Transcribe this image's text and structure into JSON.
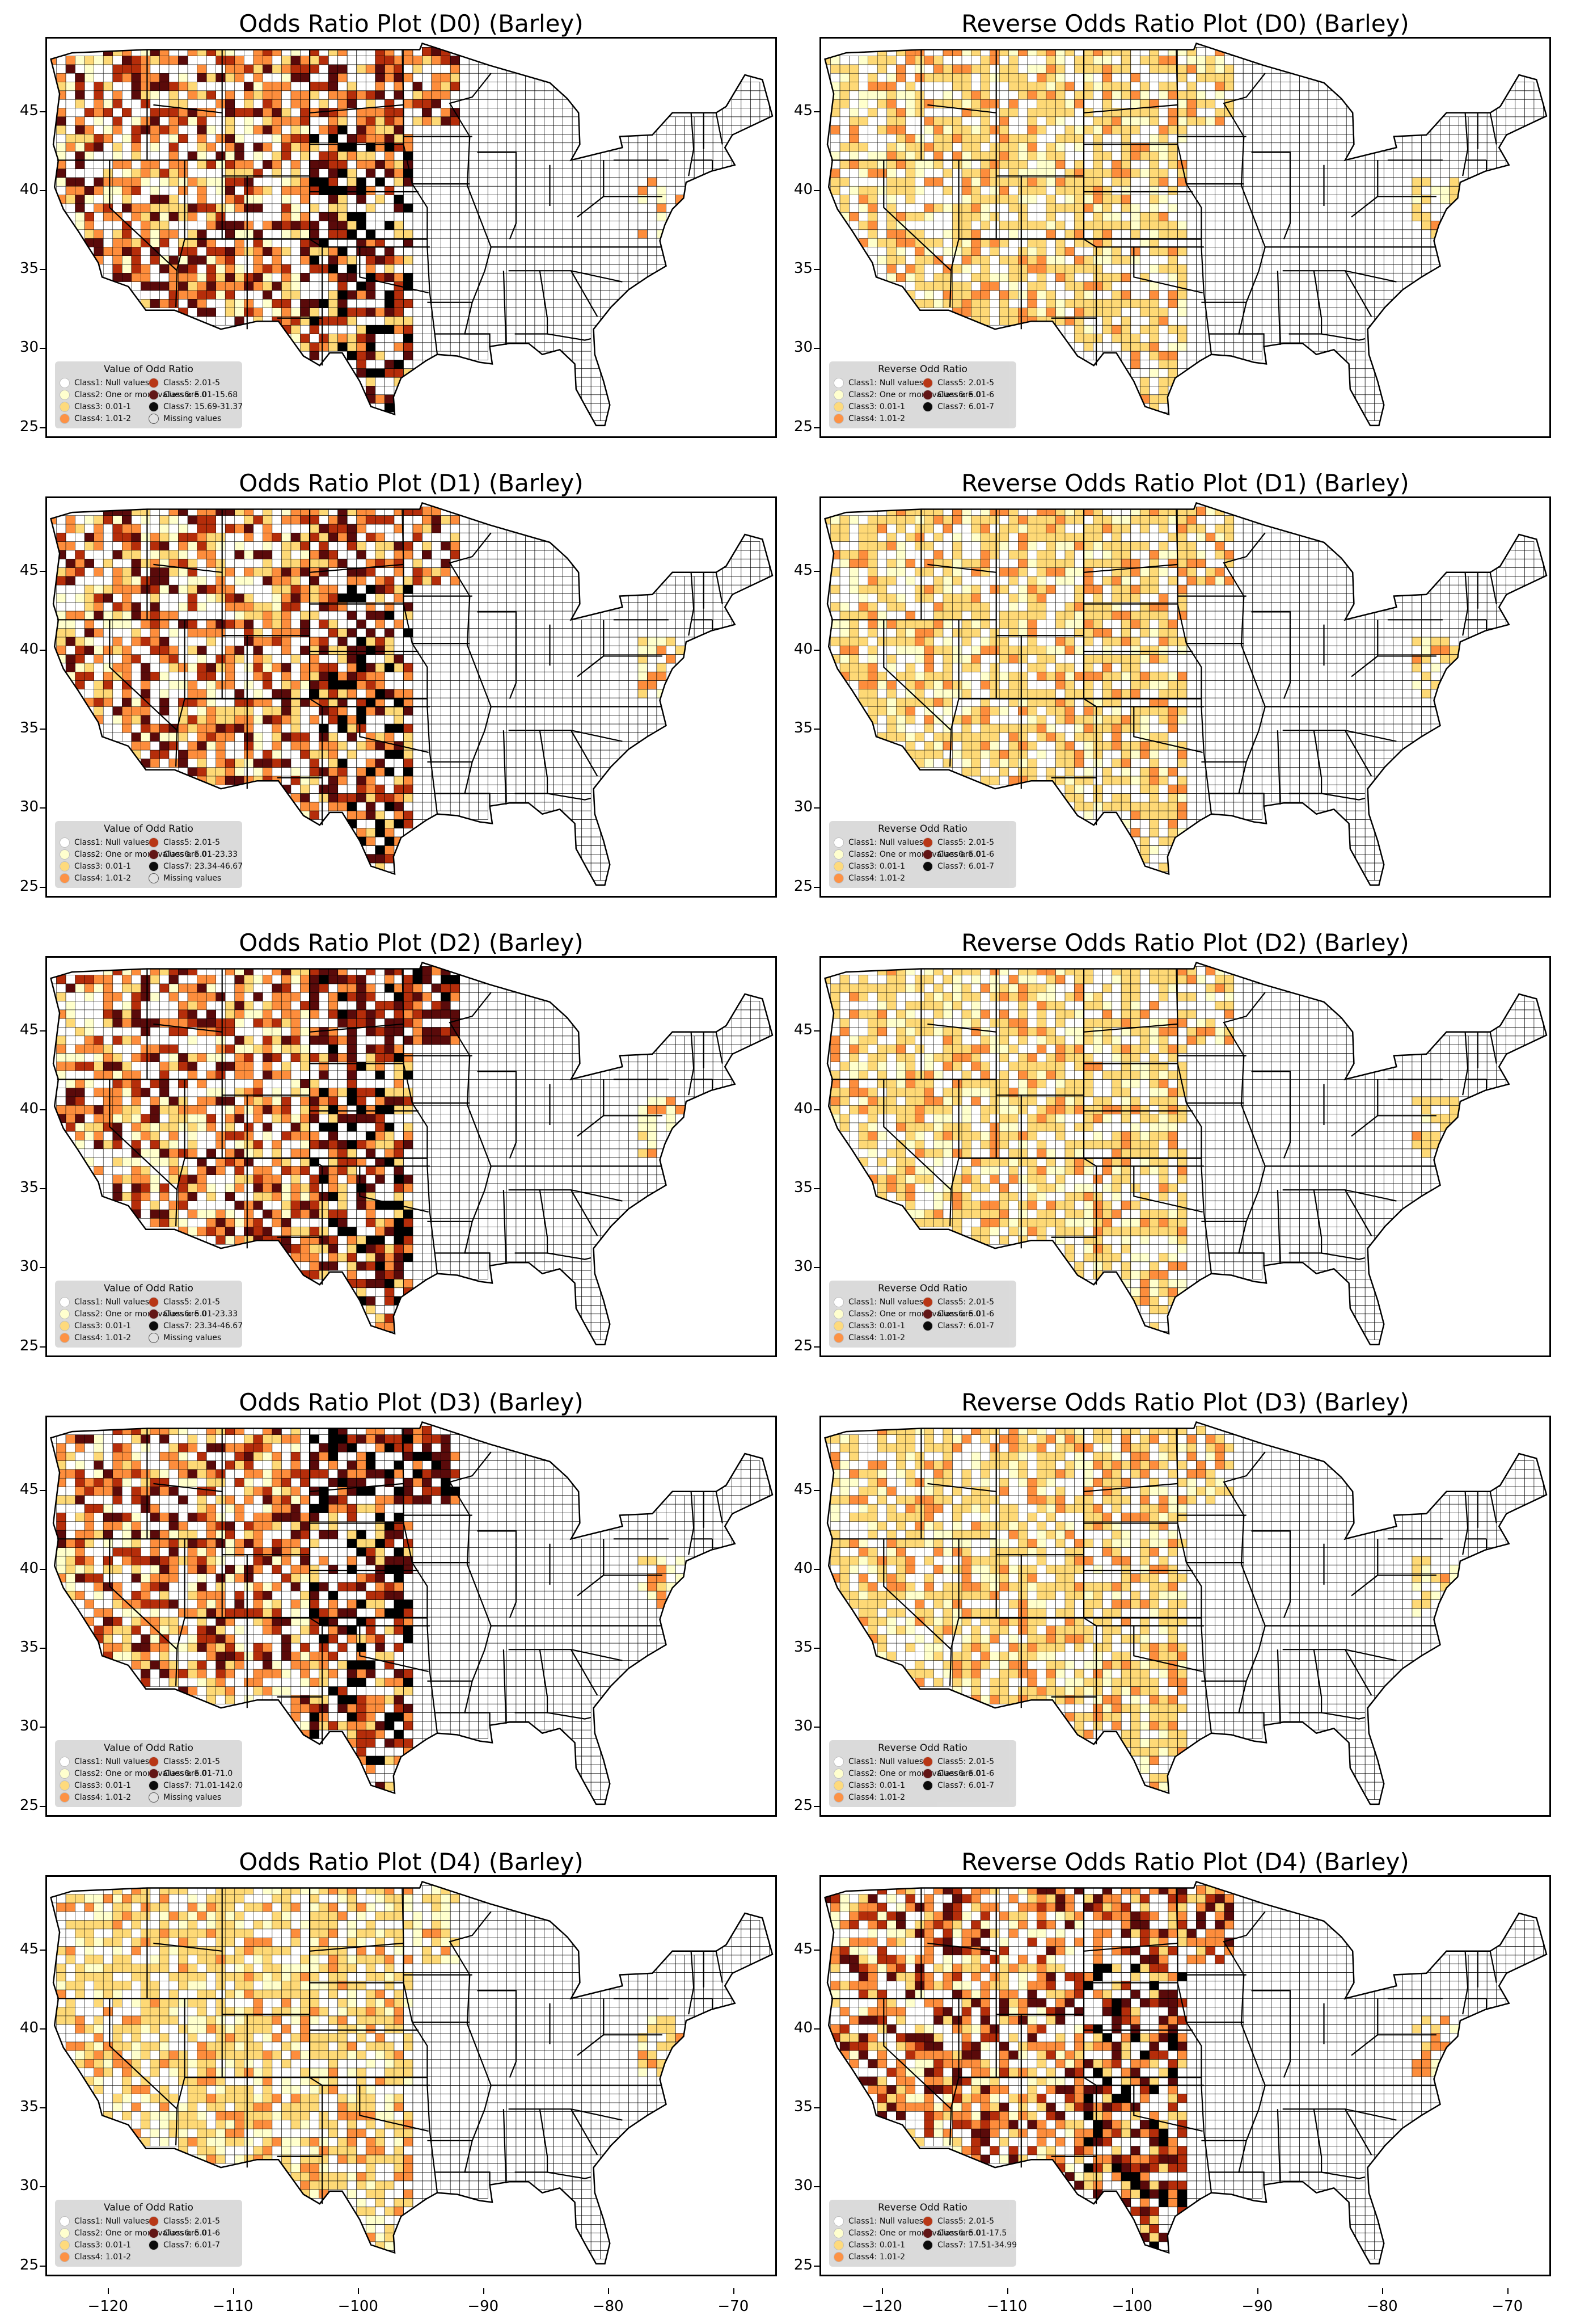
{
  "figure": {
    "crop": "Barley",
    "classes_colors": {
      "class1": "#ffffff",
      "class2": "#ffffcc",
      "class3": "#fed976",
      "class4": "#fd8d3c",
      "class5": "#b52d0a",
      "class6": "#5a0a0a",
      "class7": "#000000",
      "missing": "#e0e0e0"
    },
    "axes": {
      "xticks": [
        "−120",
        "−110",
        "−100",
        "−90",
        "−80",
        "−70"
      ],
      "yticks": [
        "45",
        "40",
        "35",
        "30",
        "25"
      ],
      "xlim": [
        -125,
        -66.5
      ],
      "ylim": [
        24.3,
        49.7
      ]
    }
  },
  "panels": [
    {
      "title": "Odds Ratio Plot (D0) (Barley)",
      "legend_title": "Value of Odd Ratio",
      "items": [
        "Class1: Null values",
        "Class2: One or more values are 0",
        "Class3: 0.01-1",
        "Class4: 1.01-2",
        "Class5: 2.01-5",
        "Class6: 5.01-15.68",
        "Class7: 15.69-31.37",
        "Missing values"
      ]
    },
    {
      "title": "Reverse Odds Ratio Plot (D0) (Barley)",
      "legend_title": "Reverse Odd Ratio",
      "items": [
        "Class1: Null values",
        "Class2: One or more values are 0",
        "Class3: 0.01-1",
        "Class4: 1.01-2",
        "Class5: 2.01-5",
        "Class6: 5.01-6",
        "Class7: 6.01-7"
      ]
    },
    {
      "title": "Odds Ratio Plot (D1) (Barley)",
      "legend_title": "Value of Odd Ratio",
      "items": [
        "Class1: Null values",
        "Class2: One or more values are 0",
        "Class3: 0.01-1",
        "Class4: 1.01-2",
        "Class5: 2.01-5",
        "Class6: 5.01-23.33",
        "Class7: 23.34-46.67",
        "Missing values"
      ]
    },
    {
      "title": "Reverse Odds Ratio Plot (D1) (Barley)",
      "legend_title": "Reverse Odd Ratio",
      "items": [
        "Class1: Null values",
        "Class2: One or more values are 0",
        "Class3: 0.01-1",
        "Class4: 1.01-2",
        "Class5: 2.01-5",
        "Class6: 5.01-6",
        "Class7: 6.01-7"
      ]
    },
    {
      "title": "Odds Ratio Plot (D2) (Barley)",
      "legend_title": "Value of Odd Ratio",
      "items": [
        "Class1: Null values",
        "Class2: One or more values are 0",
        "Class3: 0.01-1",
        "Class4: 1.01-2",
        "Class5: 2.01-5",
        "Class6: 5.01-23.33",
        "Class7: 23.34-46.67",
        "Missing values"
      ]
    },
    {
      "title": "Reverse Odds Ratio Plot (D2) (Barley)",
      "legend_title": "Reverse Odd Ratio",
      "items": [
        "Class1: Null values",
        "Class2: One or more values are 0",
        "Class3: 0.01-1",
        "Class4: 1.01-2",
        "Class5: 2.01-5",
        "Class6: 5.01-6",
        "Class7: 6.01-7"
      ]
    },
    {
      "title": "Odds Ratio Plot (D3) (Barley)",
      "legend_title": "Value of Odd Ratio",
      "items": [
        "Class1: Null values",
        "Class2: One or more values are 0",
        "Class3: 0.01-1",
        "Class4: 1.01-2",
        "Class5: 2.01-5",
        "Class6: 5.01-71.0",
        "Class7: 71.01-142.0",
        "Missing values"
      ]
    },
    {
      "title": "Reverse Odds Ratio Plot (D3) (Barley)",
      "legend_title": "Reverse Odd Ratio",
      "items": [
        "Class1: Null values",
        "Class2: One or more values are 0",
        "Class3: 0.01-1",
        "Class4: 1.01-2",
        "Class5: 2.01-5",
        "Class6: 5.01-6",
        "Class7: 6.01-7"
      ]
    },
    {
      "title": "Odds Ratio Plot (D4) (Barley)",
      "legend_title": "Value of Odd Ratio",
      "items": [
        "Class1: Null values",
        "Class2: One or more values are 0",
        "Class3: 0.01-1",
        "Class4: 1.01-2",
        "Class5: 2.01-5",
        "Class6: 5.01-6",
        "Class7: 6.01-7"
      ]
    },
    {
      "title": "Reverse Odds Ratio Plot (D4) (Barley)",
      "legend_title": "Reverse Odd Ratio",
      "items": [
        "Class1: Null values",
        "Class2: One or more values are 0",
        "Class3: 0.01-1",
        "Class4: 1.01-2",
        "Class5: 2.01-5",
        "Class6: 5.01-17.5",
        "Class7: 17.51-34.99"
      ]
    }
  ]
}
